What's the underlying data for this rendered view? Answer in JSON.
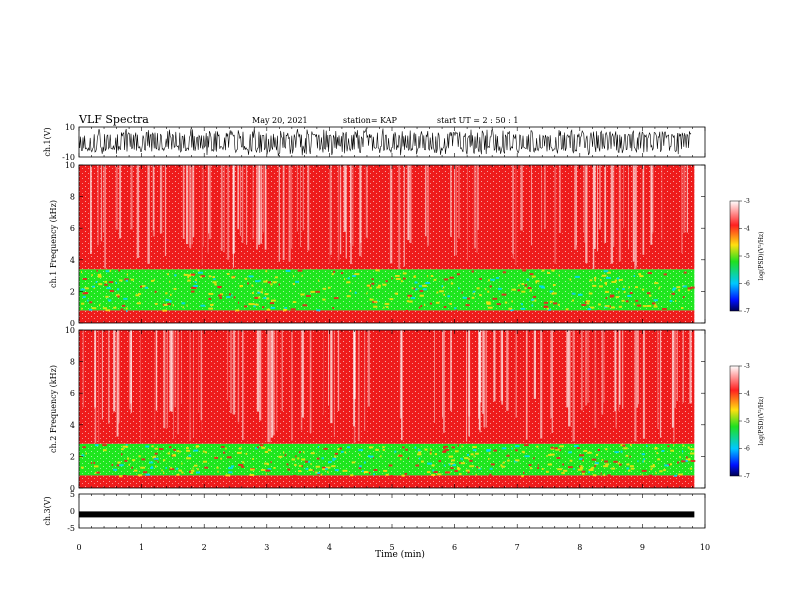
{
  "header": {
    "title": "VLF Spectra",
    "date": "May 20, 2021",
    "station": "station= KAP",
    "start": "start  UT =   2  : 50 : 1"
  },
  "chart_data": [
    {
      "type": "line",
      "panel": "ch1-waveform",
      "ylabel": "ch.1(V)",
      "ylim": [
        -10,
        10
      ],
      "yticks": [
        "10",
        "-10"
      ],
      "xlim": [
        0,
        10
      ]
    },
    {
      "type": "heatmap",
      "panel": "ch1-spectrogram",
      "ylabel": "ch.1 Frequency (kHz)",
      "ylim": [
        0,
        10
      ],
      "yticks": [
        "0",
        "2",
        "4",
        "6",
        "8",
        "10"
      ],
      "xlim": [
        0,
        9.83
      ],
      "colorbar": {
        "label": "log(PSD)(V²/Hz)",
        "range": [
          -7,
          -3
        ],
        "ticks": [
          "-3",
          "-4",
          "-5",
          "-6",
          "-7"
        ]
      },
      "bands_khz": [
        {
          "from": 0,
          "to": 0.8,
          "level": -4.1
        },
        {
          "from": 0.8,
          "to": 3.4,
          "level": -5.2
        },
        {
          "from": 3.4,
          "to": 10,
          "level": -3.8
        }
      ]
    },
    {
      "type": "heatmap",
      "panel": "ch2-spectrogram",
      "ylabel": "ch.2 Frequency (kHz)",
      "ylim": [
        0,
        10
      ],
      "yticks": [
        "0",
        "2",
        "4",
        "6",
        "8",
        "10"
      ],
      "xlim": [
        0,
        9.83
      ],
      "colorbar": {
        "label": "log(PSD)(V²/Hz)",
        "range": [
          -7,
          -3
        ],
        "ticks": [
          "-3",
          "-4",
          "-5",
          "-6",
          "-7"
        ]
      },
      "bands_khz": [
        {
          "from": 0,
          "to": 0.8,
          "level": -4.1
        },
        {
          "from": 0.8,
          "to": 2.8,
          "level": -5.2
        },
        {
          "from": 2.8,
          "to": 10,
          "level": -3.8
        }
      ]
    },
    {
      "type": "line",
      "panel": "ch3-waveform",
      "ylabel": "ch.3(V)",
      "ylim": [
        -5,
        5
      ],
      "yticks": [
        "5",
        "0",
        "-5"
      ],
      "xlim": [
        0,
        10
      ],
      "level": -1
    }
  ],
  "xaxis": {
    "label": "Time (min)",
    "ticks": [
      "0",
      "1",
      "2",
      "3",
      "4",
      "5",
      "6",
      "7",
      "8",
      "9",
      "10"
    ]
  },
  "colors": {
    "spec_high": "#ee1c1c",
    "spec_mid": "#f5e010",
    "spec_low": "#1ee61e",
    "waveform": "#000000"
  }
}
